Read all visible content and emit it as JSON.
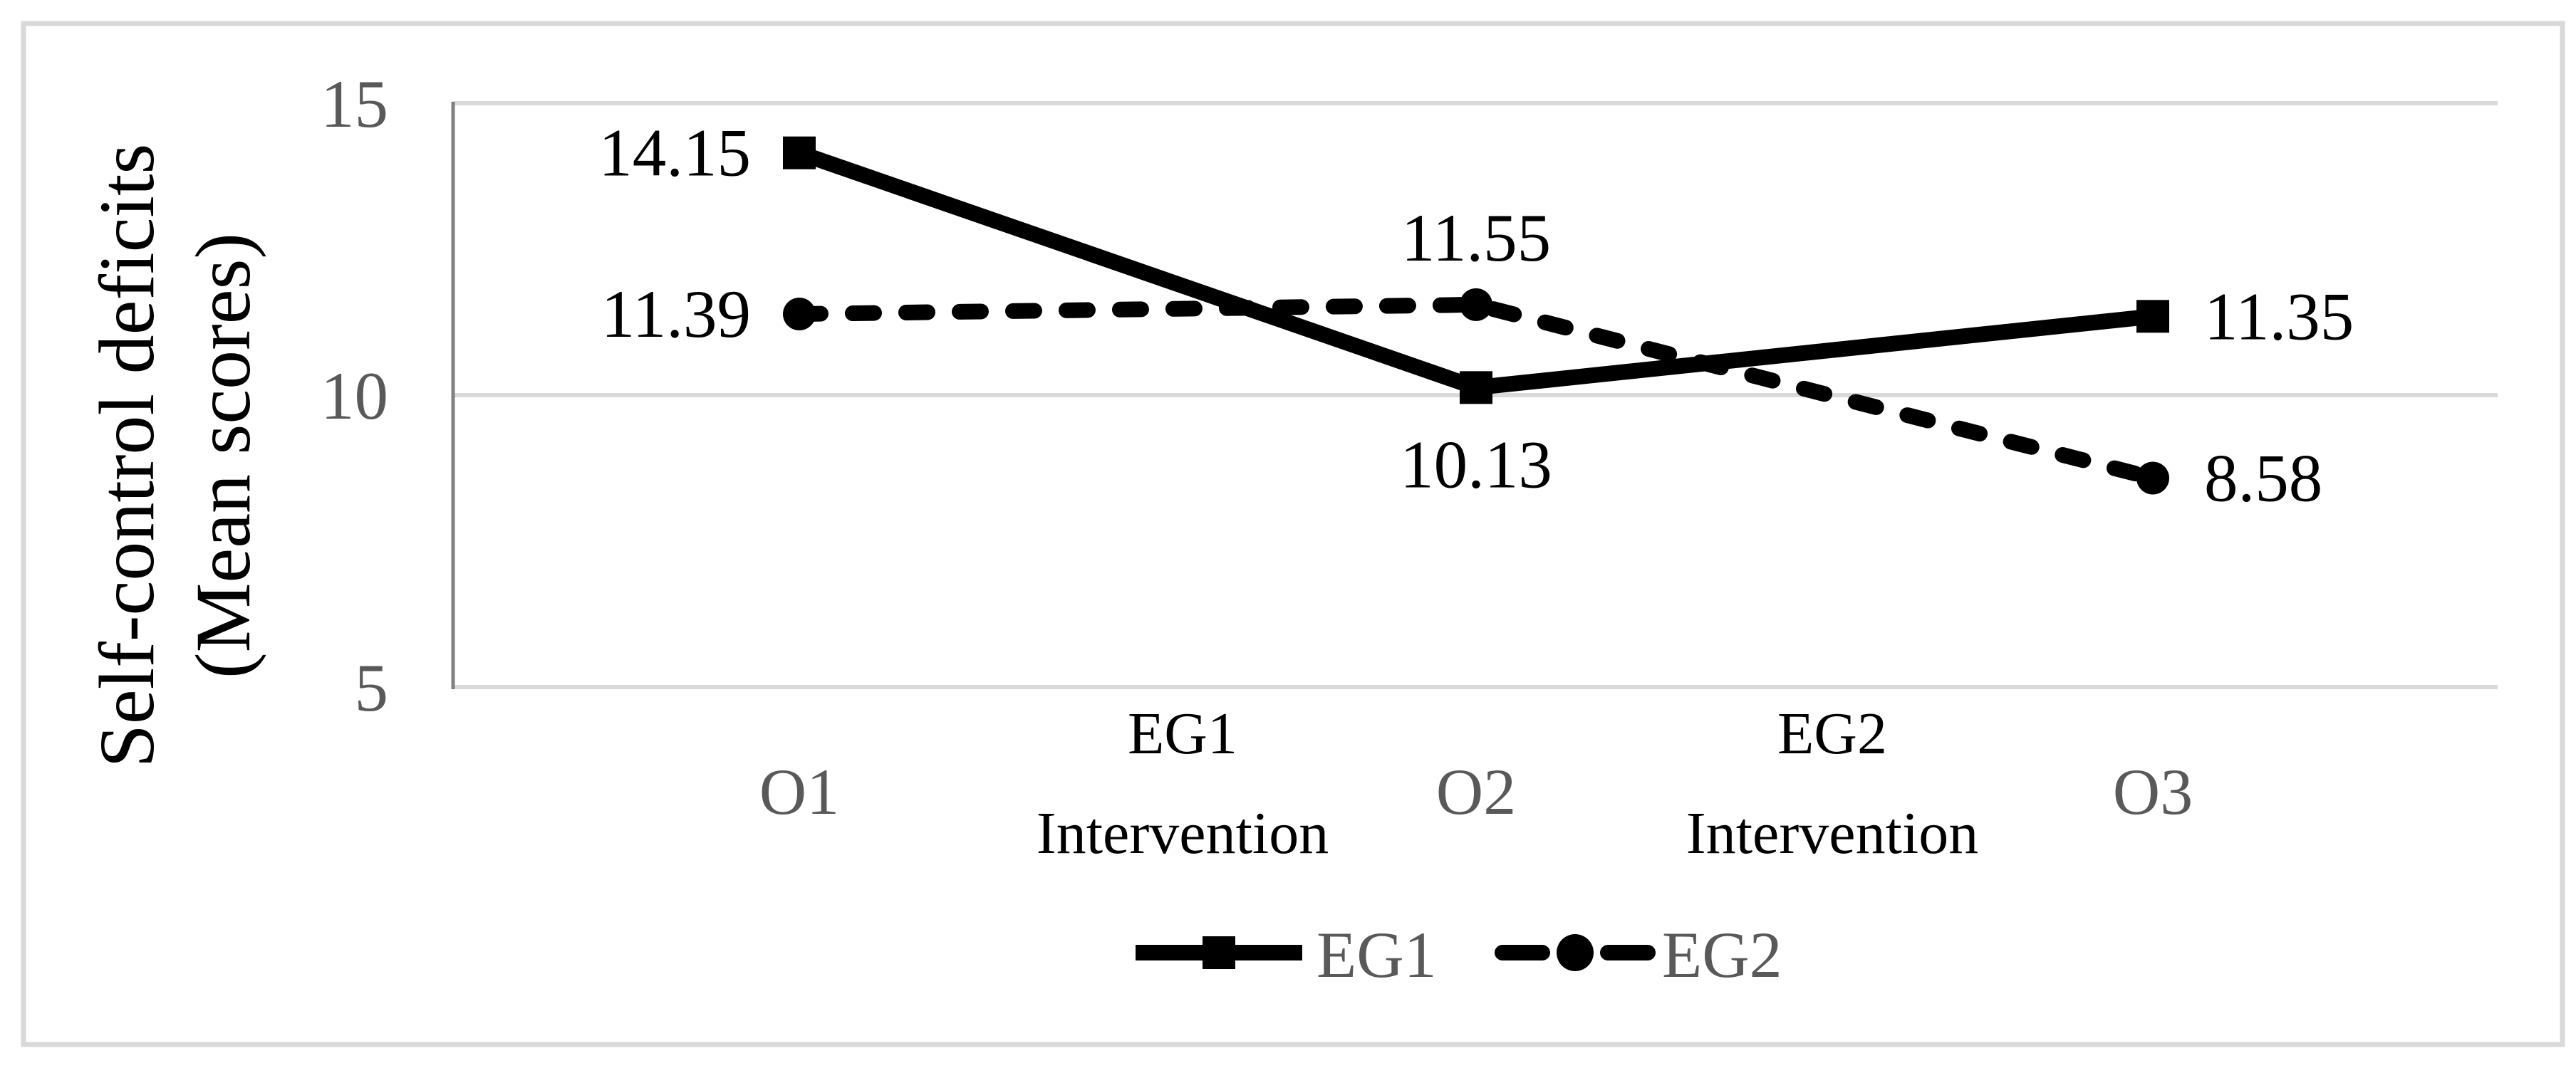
{
  "chart_data": {
    "type": "line",
    "title": "",
    "ylabel": "Self-control deficits (Mean scores)",
    "ylabel_lines": [
      "Self-control deficits",
      "(Mean scores)"
    ],
    "ylim": [
      5,
      15
    ],
    "grid": "horizontal",
    "legend_position": "bottom",
    "yticks": [
      {
        "value": 15,
        "label": "15"
      },
      {
        "value": 10,
        "label": "10"
      },
      {
        "value": 5,
        "label": "5"
      }
    ],
    "x_categories": [
      {
        "key": "O1",
        "lines": [
          "O1"
        ],
        "style": "tick"
      },
      {
        "key": "EG1 Intervention",
        "lines": [
          "EG1",
          "Intervention"
        ],
        "style": "annotation"
      },
      {
        "key": "O2",
        "lines": [
          "O2"
        ],
        "style": "tick"
      },
      {
        "key": "EG2 Intervention",
        "lines": [
          "EG2",
          "Intervention"
        ],
        "style": "annotation"
      },
      {
        "key": "O3",
        "lines": [
          "O3"
        ],
        "style": "tick"
      }
    ],
    "series": [
      {
        "name": "EG1",
        "line_style": "solid",
        "marker": "square",
        "points": [
          {
            "x": "O1",
            "category_index": 0,
            "y": 14.15,
            "label": "14.15",
            "label_pos": "left"
          },
          {
            "x": "O2",
            "category_index": 2,
            "y": 10.13,
            "label": "10.13",
            "label_pos": "below"
          },
          {
            "x": "O3",
            "category_index": 4,
            "y": 11.35,
            "label": "11.35",
            "label_pos": "right"
          }
        ]
      },
      {
        "name": "EG2",
        "line_style": "dashed",
        "marker": "circle",
        "points": [
          {
            "x": "O1",
            "category_index": 0,
            "y": 11.39,
            "label": "11.39",
            "label_pos": "left"
          },
          {
            "x": "O2",
            "category_index": 2,
            "y": 11.55,
            "label": "11.55",
            "label_pos": "above"
          },
          {
            "x": "O3",
            "category_index": 4,
            "y": 8.58,
            "label": "8.58",
            "label_pos": "right"
          }
        ]
      }
    ],
    "legend": [
      {
        "label": "EG1",
        "line_style": "solid",
        "marker": "square"
      },
      {
        "label": "EG2",
        "line_style": "dashed",
        "marker": "circle"
      }
    ]
  },
  "colors": {
    "background": "#FFFFFF",
    "frame_border": "#D9D9D9",
    "gridline": "#D9D9D9",
    "axis_line": "#808080",
    "tick_text": "#595959",
    "category_text": "#595959",
    "annotation_text": "#000000",
    "data_label_text": "#000000",
    "series_line": "#000000",
    "legend_text": "#595959"
  }
}
